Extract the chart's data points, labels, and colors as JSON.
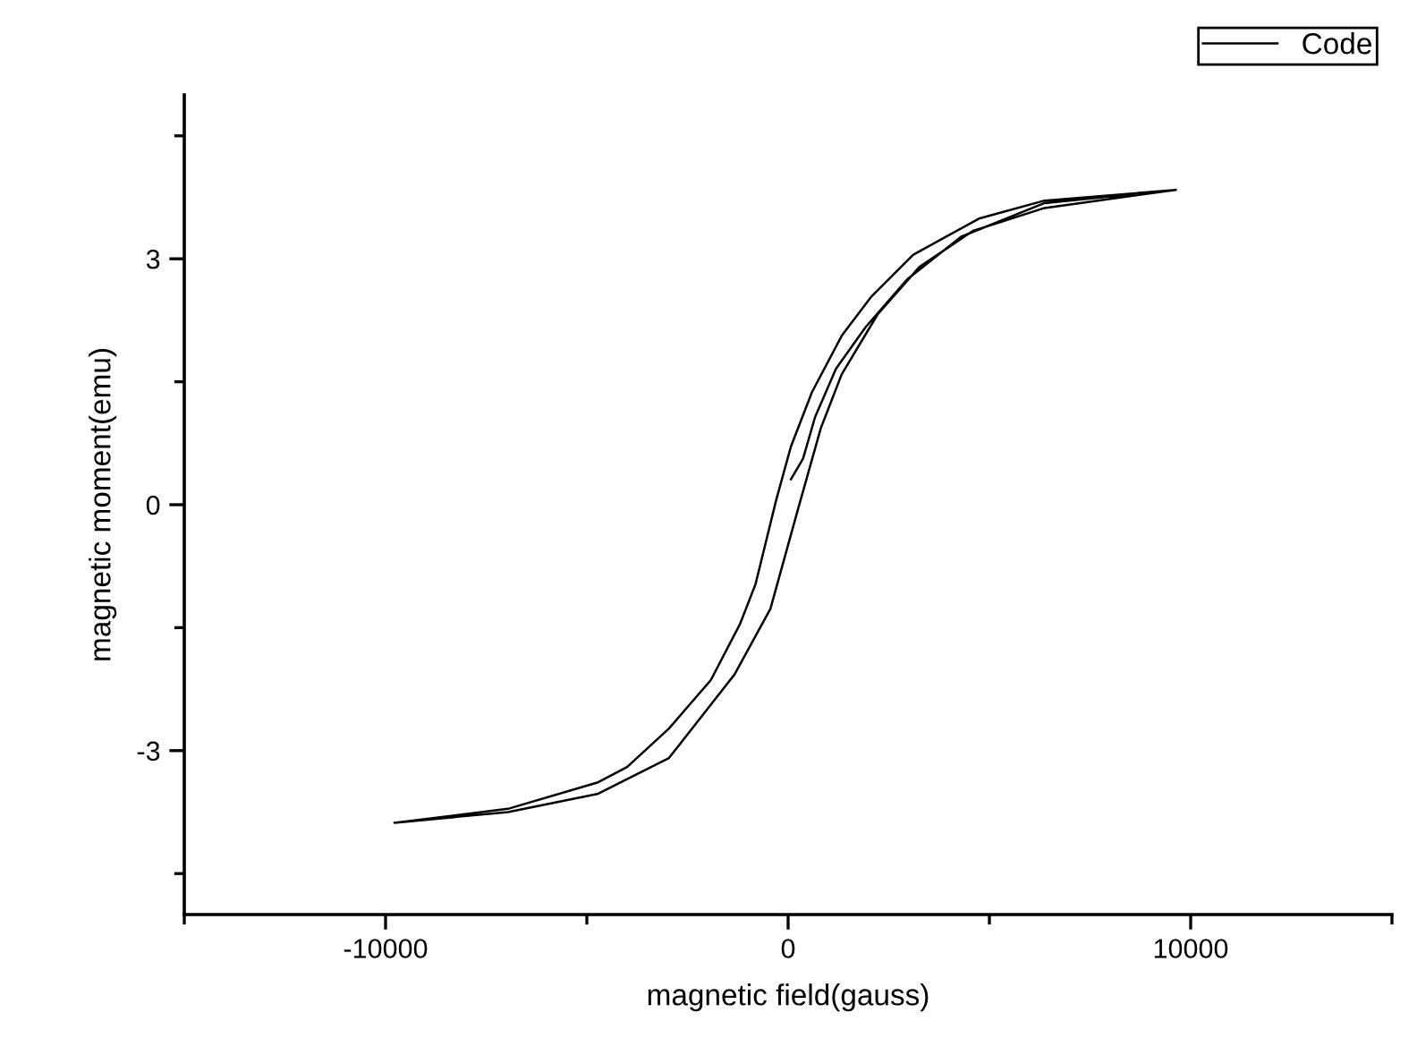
{
  "chart_data": {
    "type": "line",
    "xlabel": "magnetic field(gauss)",
    "ylabel": "magnetic moment(emu)",
    "xlim": [
      -15000,
      15000
    ],
    "xticks": [
      {
        "value": -15000,
        "label": null
      },
      -10000,
      {
        "value": -5000,
        "label": null
      },
      0,
      {
        "value": 5000,
        "label": null
      },
      10000,
      {
        "value": 15000,
        "label": null
      }
    ],
    "ylim": [
      -5,
      5
    ],
    "yticks": [
      {
        "value": -4.5,
        "label": null
      },
      -3,
      {
        "value": -1.5,
        "label": null
      },
      0,
      {
        "value": 1.5,
        "label": null
      },
      3,
      {
        "value": 4.5,
        "label": null
      }
    ],
    "grid": false,
    "legend": "top right",
    "marker": "none",
    "line_style": "solid",
    "series": [
      {
        "name": "Code",
        "color": "#000000",
        "x": [
          70,
          370,
          670,
          1190,
          1930,
          2960,
          4300,
          6370,
          9630,
          6370,
          4740,
          3110,
          2070,
          1330,
          590,
          70,
          -300,
          -520,
          -810,
          -1190,
          -1920,
          -2960,
          -4000,
          -4740,
          -6960,
          -9780,
          -6960,
          -4740,
          -2960,
          -1330,
          -440,
          220,
          810,
          1330,
          2220,
          3260,
          4590,
          6370,
          9630
        ],
        "values": [
          0.31,
          0.56,
          1.07,
          1.66,
          2.17,
          2.75,
          3.27,
          3.68,
          3.84,
          3.71,
          3.49,
          3.05,
          2.54,
          2.06,
          1.37,
          0.71,
          0.05,
          -0.39,
          -0.97,
          -1.45,
          -2.14,
          -2.73,
          -3.2,
          -3.39,
          -3.71,
          -3.88,
          -3.75,
          -3.53,
          -3.09,
          -2.07,
          -1.27,
          -0.1,
          0.93,
          1.59,
          2.32,
          2.9,
          3.34,
          3.62,
          3.84
        ]
      }
    ]
  }
}
